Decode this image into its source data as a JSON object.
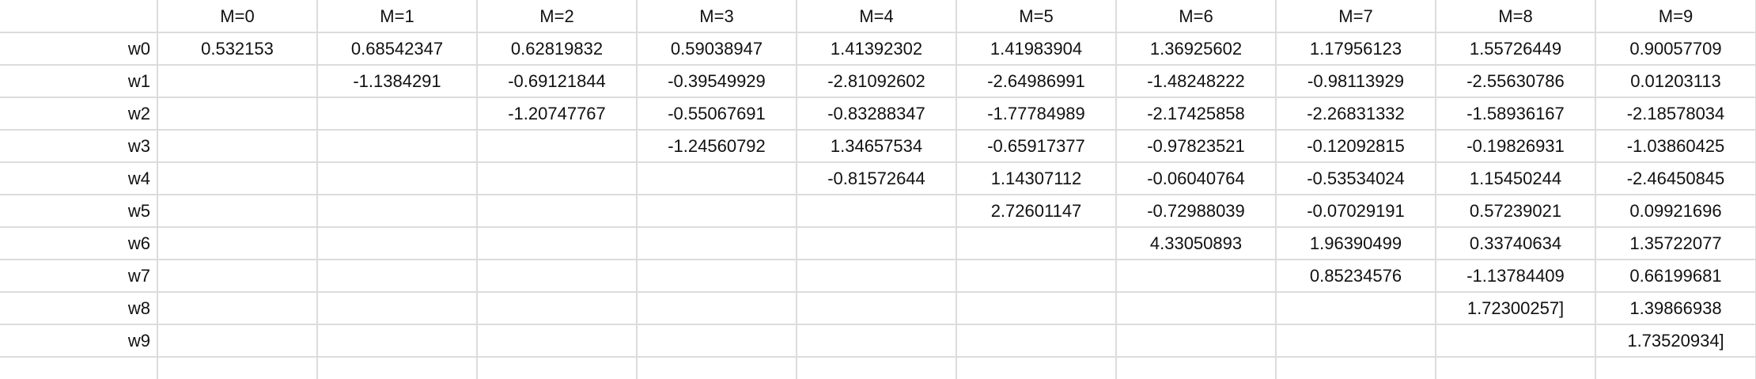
{
  "columns": [
    "M=0",
    "M=1",
    "M=2",
    "M=3",
    "M=4",
    "M=5",
    "M=6",
    "M=7",
    "M=8",
    "M=9"
  ],
  "rows": [
    {
      "label": "w0",
      "values": [
        "0.532153",
        "0.68542347",
        "0.62819832",
        "0.59038947",
        "1.41392302",
        "1.41983904",
        "1.36925602",
        "1.17956123",
        "1.55726449",
        "0.90057709"
      ]
    },
    {
      "label": "w1",
      "values": [
        "",
        "-1.1384291",
        "-0.69121844",
        "-0.39549929",
        "-2.81092602",
        "-2.64986991",
        "-1.48248222",
        "-0.98113929",
        "-2.55630786",
        "0.01203113"
      ]
    },
    {
      "label": "w2",
      "values": [
        "",
        "",
        "-1.20747767",
        "-0.55067691",
        "-0.83288347",
        "-1.77784989",
        "-2.17425858",
        "-2.26831332",
        "-1.58936167",
        "-2.18578034"
      ]
    },
    {
      "label": "w3",
      "values": [
        "",
        "",
        "",
        "-1.24560792",
        "1.34657534",
        "-0.65917377",
        "-0.97823521",
        "-0.12092815",
        "-0.19826931",
        "-1.03860425"
      ]
    },
    {
      "label": "w4",
      "values": [
        "",
        "",
        "",
        "",
        "-0.81572644",
        "1.14307112",
        "-0.06040764",
        "-0.53534024",
        "1.15450244",
        "-2.46450845"
      ]
    },
    {
      "label": "w5",
      "values": [
        "",
        "",
        "",
        "",
        "",
        "2.72601147",
        "-0.72988039",
        "-0.07029191",
        "0.57239021",
        "0.09921696"
      ]
    },
    {
      "label": "w6",
      "values": [
        "",
        "",
        "",
        "",
        "",
        "",
        "4.33050893",
        "1.96390499",
        "0.33740634",
        "1.35722077"
      ]
    },
    {
      "label": "w7",
      "values": [
        "",
        "",
        "",
        "",
        "",
        "",
        "",
        "0.85234576",
        "-1.13784409",
        "0.66199681"
      ]
    },
    {
      "label": "w8",
      "values": [
        "",
        "",
        "",
        "",
        "",
        "",
        "",
        "",
        "1.72300257]",
        "1.39866938"
      ]
    },
    {
      "label": "w9",
      "values": [
        "",
        "",
        "",
        "",
        "",
        "",
        "",
        "",
        "",
        "1.73520934]"
      ]
    }
  ],
  "colors": {
    "gridline": "#dcdcdc",
    "text": "#111111",
    "background": "#ffffff"
  }
}
